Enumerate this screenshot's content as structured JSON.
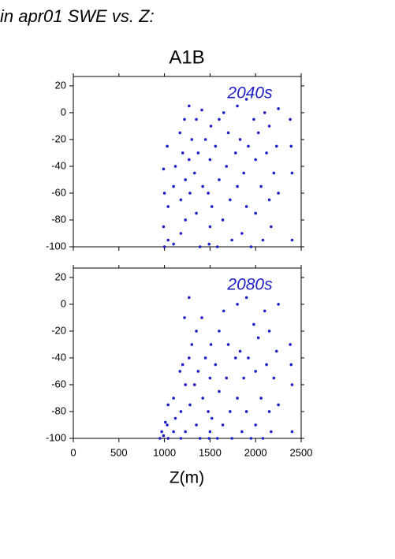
{
  "chart_data": [
    {
      "type": "scatter",
      "title": "in apr01 SWE vs. Z:",
      "subtitle": "A1B",
      "annotation": "2040s",
      "color": "#1f1fc4",
      "xlim": [
        0,
        2500
      ],
      "xticks": [
        0,
        500,
        1000,
        1500,
        2000,
        2500
      ],
      "ylim": [
        -100,
        27
      ],
      "yticks": [
        -100,
        -80,
        -60,
        -40,
        -20,
        0,
        20
      ],
      "x": [
        990,
        990,
        1000,
        1000,
        1030,
        1040,
        1040,
        1100,
        1100,
        1120,
        1170,
        1180,
        1180,
        1200,
        1220,
        1230,
        1230,
        1270,
        1270,
        1280,
        1300,
        1330,
        1350,
        1350,
        1370,
        1390,
        1410,
        1420,
        1450,
        1480,
        1490,
        1500,
        1500,
        1510,
        1520,
        1560,
        1580,
        1600,
        1600,
        1640,
        1650,
        1680,
        1700,
        1720,
        1740,
        1780,
        1800,
        1800,
        1830,
        1850,
        1870,
        1900,
        1900,
        1920,
        1950,
        1980,
        2000,
        2000,
        2030,
        2060,
        2080,
        2100,
        2120,
        2150,
        2150,
        2170,
        2200,
        2230,
        2250,
        2250,
        2380,
        2390,
        2400,
        2400
      ],
      "values": [
        -42,
        -85,
        -60,
        -100,
        -25,
        -70,
        -95,
        -55,
        -98,
        -40,
        -15,
        -65,
        -90,
        -30,
        -5,
        -50,
        -80,
        5,
        -35,
        -60,
        -20,
        -45,
        -5,
        -75,
        -30,
        -100,
        2,
        -55,
        -20,
        -60,
        -98,
        -35,
        -85,
        -10,
        -70,
        -25,
        -100,
        -5,
        -50,
        -80,
        0,
        -40,
        -15,
        -65,
        -95,
        -30,
        5,
        -55,
        -20,
        -90,
        -45,
        10,
        -70,
        -25,
        -100,
        -5,
        -35,
        -75,
        -15,
        -55,
        -95,
        0,
        -30,
        -65,
        -10,
        -85,
        -45,
        -25,
        -60,
        3,
        -5,
        -25,
        -45,
        -95
      ]
    },
    {
      "type": "scatter",
      "annotation": "2080s",
      "x_label": "Z(m)",
      "color": "#1f1fc4",
      "xlim": [
        0,
        2500
      ],
      "xticks": [
        0,
        500,
        1000,
        1500,
        2000,
        2500
      ],
      "ylim": [
        -100,
        27
      ],
      "yticks": [
        -100,
        -80,
        -60,
        -40,
        -20,
        0,
        20
      ],
      "x": [
        950,
        970,
        990,
        1010,
        1030,
        1040,
        1040,
        1100,
        1100,
        1120,
        1170,
        1180,
        1180,
        1200,
        1220,
        1230,
        1230,
        1270,
        1270,
        1280,
        1300,
        1330,
        1350,
        1350,
        1370,
        1390,
        1410,
        1420,
        1450,
        1480,
        1490,
        1500,
        1500,
        1510,
        1520,
        1560,
        1580,
        1600,
        1600,
        1640,
        1650,
        1680,
        1700,
        1720,
        1740,
        1780,
        1800,
        1800,
        1830,
        1850,
        1870,
        1900,
        1900,
        1920,
        1950,
        1980,
        2000,
        2000,
        2030,
        2060,
        2080,
        2100,
        2120,
        2150,
        2150,
        2170,
        2200,
        2230,
        2250,
        2250,
        2380,
        2390,
        2400,
        2400
      ],
      "values": [
        -100,
        -95,
        -98,
        -88,
        -90,
        -75,
        -100,
        -70,
        -95,
        -85,
        -50,
        -80,
        -100,
        -45,
        -10,
        -60,
        -95,
        5,
        -40,
        -75,
        -30,
        -60,
        -20,
        -90,
        -50,
        -100,
        -10,
        -70,
        -40,
        -80,
        -100,
        -55,
        -95,
        -30,
        -85,
        -45,
        -100,
        -20,
        -65,
        -90,
        -5,
        -55,
        -30,
        -80,
        -100,
        -40,
        0,
        -70,
        -35,
        -95,
        -55,
        5,
        -80,
        -40,
        -100,
        -15,
        -50,
        -90,
        -25,
        -70,
        -100,
        -5,
        -45,
        -80,
        -20,
        -95,
        -55,
        -35,
        -75,
        0,
        -30,
        -45,
        -60,
        -95
      ]
    }
  ]
}
